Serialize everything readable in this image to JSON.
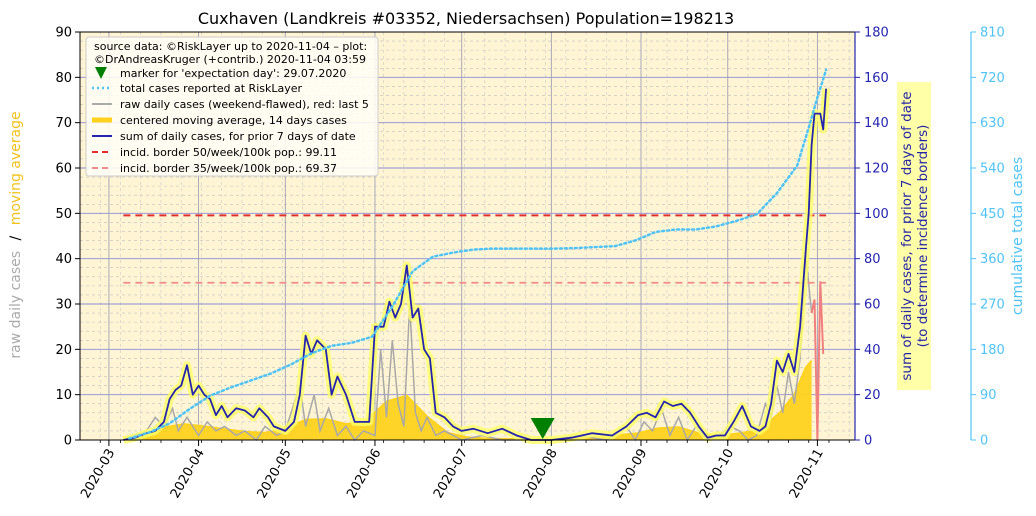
{
  "chart_data": {
    "type": "line",
    "title": "Cuxhaven (Landkreis #03352, Niedersachsen) Population=198213",
    "ylabel_left_part1": "raw daily cases",
    "ylabel_left_sep": "/",
    "ylabel_left_part2": "moving average",
    "ylabel_right1_line1": "sum of daily cases, for prior 7 days of date",
    "ylabel_right1_line2": "(to determine incidence borders)",
    "ylabel_right2": "cumulative total cases",
    "ylim_left": [
      0,
      90
    ],
    "ylim_right1": [
      0,
      180
    ],
    "ylim_right2": [
      0,
      810
    ],
    "xlim": [
      "2020-02-20",
      "2020-11-14"
    ],
    "yticks_left": [
      0,
      10,
      20,
      30,
      40,
      50,
      60,
      70,
      80,
      90
    ],
    "yticks_right1": [
      0,
      20,
      40,
      60,
      80,
      100,
      120,
      140,
      160,
      180
    ],
    "yticks_right2": [
      0,
      90,
      180,
      270,
      360,
      450,
      540,
      630,
      720,
      810
    ],
    "xticks": [
      {
        "date": "2020-03-01",
        "label": "2020-03"
      },
      {
        "date": "2020-04-01",
        "label": "2020-04"
      },
      {
        "date": "2020-05-01",
        "label": "2020-05"
      },
      {
        "date": "2020-06-01",
        "label": "2020-06"
      },
      {
        "date": "2020-07-01",
        "label": "2020-07"
      },
      {
        "date": "2020-08-01",
        "label": "2020-08"
      },
      {
        "date": "2020-09-01",
        "label": "2020-09"
      },
      {
        "date": "2020-10-01",
        "label": "2020-10"
      },
      {
        "date": "2020-11-01",
        "label": "2020-11"
      }
    ],
    "grid": true,
    "legend_position": "top-left",
    "legend": {
      "source_line1": "source data: ©RiskLayer up to 2020-11-04 – plot:",
      "source_line2": "©DrAndreasKruger (+contrib.) 2020-11-04 03:59",
      "entries": [
        "marker for 'expectation day': 29.07.2020",
        "total cases reported at RiskLayer",
        "raw daily cases (weekend-flawed), red: last 5",
        "centered moving average, 14 days cases",
        "sum of daily cases, for prior 7 days of date",
        "incid. border 50/week/100k pop.: 99.11",
        "incid. border 35/week/100k pop.: 69.37"
      ]
    },
    "expectation_day": "2020-07-29",
    "incidence_border_50": 99.11,
    "incidence_border_35": 69.37,
    "series": [
      {
        "name": "total cases reported at RiskLayer",
        "axis": "right2",
        "points": [
          [
            "2020-03-08",
            3
          ],
          [
            "2020-03-15",
            15
          ],
          [
            "2020-03-22",
            33
          ],
          [
            "2020-03-29",
            62
          ],
          [
            "2020-04-05",
            88
          ],
          [
            "2020-04-12",
            104
          ],
          [
            "2020-04-19",
            118
          ],
          [
            "2020-04-26",
            132
          ],
          [
            "2020-05-03",
            150
          ],
          [
            "2020-05-10",
            172
          ],
          [
            "2020-05-17",
            187
          ],
          [
            "2020-05-24",
            193
          ],
          [
            "2020-05-31",
            205
          ],
          [
            "2020-06-07",
            265
          ],
          [
            "2020-06-14",
            335
          ],
          [
            "2020-06-21",
            364
          ],
          [
            "2020-06-28",
            372
          ],
          [
            "2020-07-05",
            378
          ],
          [
            "2020-07-12",
            380
          ],
          [
            "2020-07-19",
            380
          ],
          [
            "2020-07-26",
            380
          ],
          [
            "2020-08-02",
            380
          ],
          [
            "2020-08-09",
            381
          ],
          [
            "2020-08-16",
            383
          ],
          [
            "2020-08-23",
            385
          ],
          [
            "2020-08-30",
            396
          ],
          [
            "2020-09-06",
            413
          ],
          [
            "2020-09-13",
            418
          ],
          [
            "2020-09-20",
            418
          ],
          [
            "2020-09-27",
            424
          ],
          [
            "2020-10-04",
            435
          ],
          [
            "2020-10-11",
            448
          ],
          [
            "2020-10-18",
            490
          ],
          [
            "2020-10-25",
            545
          ],
          [
            "2020-10-29",
            620
          ],
          [
            "2020-11-01",
            680
          ],
          [
            "2020-11-04",
            735
          ]
        ]
      },
      {
        "name": "raw daily cases (weekend-flawed), red: last 5",
        "axis": "left",
        "points": [
          [
            "2020-03-06",
            0
          ],
          [
            "2020-03-10",
            1
          ],
          [
            "2020-03-14",
            2
          ],
          [
            "2020-03-17",
            5
          ],
          [
            "2020-03-20",
            3
          ],
          [
            "2020-03-23",
            7
          ],
          [
            "2020-03-25",
            2
          ],
          [
            "2020-03-28",
            5
          ],
          [
            "2020-04-01",
            1
          ],
          [
            "2020-04-04",
            4
          ],
          [
            "2020-04-07",
            2
          ],
          [
            "2020-04-10",
            3
          ],
          [
            "2020-04-14",
            1
          ],
          [
            "2020-04-17",
            2
          ],
          [
            "2020-04-21",
            0
          ],
          [
            "2020-04-24",
            3
          ],
          [
            "2020-04-28",
            1
          ],
          [
            "2020-05-01",
            2
          ],
          [
            "2020-05-04",
            8
          ],
          [
            "2020-05-06",
            12
          ],
          [
            "2020-05-08",
            3
          ],
          [
            "2020-05-11",
            10
          ],
          [
            "2020-05-13",
            2
          ],
          [
            "2020-05-16",
            7
          ],
          [
            "2020-05-19",
            1
          ],
          [
            "2020-05-22",
            3
          ],
          [
            "2020-05-25",
            0
          ],
          [
            "2020-05-28",
            2
          ],
          [
            "2020-06-01",
            1
          ],
          [
            "2020-06-03",
            20
          ],
          [
            "2020-06-05",
            5
          ],
          [
            "2020-06-07",
            22
          ],
          [
            "2020-06-09",
            8
          ],
          [
            "2020-06-11",
            3
          ],
          [
            "2020-06-13",
            30
          ],
          [
            "2020-06-15",
            6
          ],
          [
            "2020-06-17",
            2
          ],
          [
            "2020-06-19",
            5
          ],
          [
            "2020-06-22",
            1
          ],
          [
            "2020-06-25",
            2
          ],
          [
            "2020-07-01",
            0
          ],
          [
            "2020-07-08",
            1
          ],
          [
            "2020-07-15",
            0
          ],
          [
            "2020-07-22",
            0
          ],
          [
            "2020-08-01",
            0
          ],
          [
            "2020-08-10",
            1
          ],
          [
            "2020-08-20",
            0
          ],
          [
            "2020-08-27",
            3
          ],
          [
            "2020-08-30",
            0
          ],
          [
            "2020-09-02",
            4
          ],
          [
            "2020-09-05",
            2
          ],
          [
            "2020-09-08",
            7
          ],
          [
            "2020-09-11",
            1
          ],
          [
            "2020-09-14",
            5
          ],
          [
            "2020-09-17",
            0
          ],
          [
            "2020-09-20",
            3
          ],
          [
            "2020-09-24",
            0
          ],
          [
            "2020-09-28",
            1
          ],
          [
            "2020-10-02",
            3
          ],
          [
            "2020-10-05",
            2
          ],
          [
            "2020-10-08",
            0
          ],
          [
            "2020-10-11",
            1
          ],
          [
            "2020-10-14",
            8
          ],
          [
            "2020-10-16",
            5
          ],
          [
            "2020-10-18",
            12
          ],
          [
            "2020-10-20",
            6
          ],
          [
            "2020-10-22",
            15
          ],
          [
            "2020-10-24",
            8
          ],
          [
            "2020-10-26",
            18
          ],
          [
            "2020-10-28",
            41
          ],
          [
            "2020-10-30",
            28
          ]
        ]
      },
      {
        "name": "raw daily cases, last 5 (red)",
        "axis": "left",
        "points": [
          [
            "2020-10-30",
            28
          ],
          [
            "2020-10-31",
            31
          ],
          [
            "2020-11-01",
            0
          ],
          [
            "2020-11-02",
            35
          ],
          [
            "2020-11-03",
            19
          ]
        ]
      },
      {
        "name": "centered moving average, 14 days cases",
        "axis": "left",
        "points": [
          [
            "2020-03-06",
            0.3
          ],
          [
            "2020-03-13",
            1.2
          ],
          [
            "2020-03-20",
            2.8
          ],
          [
            "2020-03-27",
            3.5
          ],
          [
            "2020-04-03",
            3.0
          ],
          [
            "2020-04-10",
            2.4
          ],
          [
            "2020-04-17",
            1.8
          ],
          [
            "2020-04-24",
            1.6
          ],
          [
            "2020-05-01",
            2.4
          ],
          [
            "2020-05-08",
            4.5
          ],
          [
            "2020-05-15",
            4.6
          ],
          [
            "2020-05-22",
            3.5
          ],
          [
            "2020-05-29",
            4.2
          ],
          [
            "2020-06-05",
            8.5
          ],
          [
            "2020-06-12",
            9.8
          ],
          [
            "2020-06-19",
            5.2
          ],
          [
            "2020-06-26",
            1.6
          ],
          [
            "2020-07-03",
            0.6
          ],
          [
            "2020-07-10",
            0.3
          ],
          [
            "2020-07-20",
            0.2
          ],
          [
            "2020-07-31",
            0.2
          ],
          [
            "2020-08-10",
            0.4
          ],
          [
            "2020-08-20",
            0.8
          ],
          [
            "2020-08-31",
            1.5
          ],
          [
            "2020-09-07",
            2.6
          ],
          [
            "2020-09-14",
            2.8
          ],
          [
            "2020-09-21",
            1.5
          ],
          [
            "2020-09-28",
            0.9
          ],
          [
            "2020-10-05",
            1.5
          ],
          [
            "2020-10-12",
            2.2
          ],
          [
            "2020-10-19",
            6.0
          ],
          [
            "2020-10-24",
            10.0
          ],
          [
            "2020-10-28",
            16.0
          ],
          [
            "2020-10-30",
            17.5
          ]
        ]
      },
      {
        "name": "sum of daily cases, for prior 7 days of date",
        "axis": "right1",
        "points": [
          [
            "2020-03-06",
            0
          ],
          [
            "2020-03-10",
            1
          ],
          [
            "2020-03-14",
            3
          ],
          [
            "2020-03-17",
            4
          ],
          [
            "2020-03-20",
            8
          ],
          [
            "2020-03-22",
            18
          ],
          [
            "2020-03-24",
            22
          ],
          [
            "2020-03-26",
            24
          ],
          [
            "2020-03-28",
            33
          ],
          [
            "2020-03-30",
            20
          ],
          [
            "2020-04-01",
            24
          ],
          [
            "2020-04-03",
            20
          ],
          [
            "2020-04-05",
            18
          ],
          [
            "2020-04-07",
            11
          ],
          [
            "2020-04-09",
            15
          ],
          [
            "2020-04-11",
            10
          ],
          [
            "2020-04-14",
            14
          ],
          [
            "2020-04-17",
            13
          ],
          [
            "2020-04-20",
            10
          ],
          [
            "2020-04-22",
            14
          ],
          [
            "2020-04-25",
            10
          ],
          [
            "2020-04-27",
            6
          ],
          [
            "2020-05-01",
            4
          ],
          [
            "2020-05-04",
            8
          ],
          [
            "2020-05-06",
            20
          ],
          [
            "2020-05-08",
            46
          ],
          [
            "2020-05-10",
            38
          ],
          [
            "2020-05-12",
            44
          ],
          [
            "2020-05-15",
            40
          ],
          [
            "2020-05-17",
            20
          ],
          [
            "2020-05-19",
            28
          ],
          [
            "2020-05-22",
            20
          ],
          [
            "2020-05-25",
            8
          ],
          [
            "2020-05-28",
            8
          ],
          [
            "2020-05-30",
            8
          ],
          [
            "2020-06-01",
            50
          ],
          [
            "2020-06-04",
            50
          ],
          [
            "2020-06-06",
            61
          ],
          [
            "2020-06-08",
            54
          ],
          [
            "2020-06-10",
            60
          ],
          [
            "2020-06-12",
            77
          ],
          [
            "2020-06-14",
            54
          ],
          [
            "2020-06-16",
            58
          ],
          [
            "2020-06-18",
            40
          ],
          [
            "2020-06-20",
            36
          ],
          [
            "2020-06-22",
            12
          ],
          [
            "2020-06-25",
            10
          ],
          [
            "2020-06-28",
            6
          ],
          [
            "2020-07-01",
            4
          ],
          [
            "2020-07-05",
            5
          ],
          [
            "2020-07-10",
            3
          ],
          [
            "2020-07-15",
            5
          ],
          [
            "2020-07-20",
            2
          ],
          [
            "2020-07-25",
            0
          ],
          [
            "2020-08-01",
            0
          ],
          [
            "2020-08-08",
            1
          ],
          [
            "2020-08-15",
            3
          ],
          [
            "2020-08-22",
            2
          ],
          [
            "2020-08-27",
            6
          ],
          [
            "2020-08-31",
            11
          ],
          [
            "2020-09-03",
            12
          ],
          [
            "2020-09-06",
            10
          ],
          [
            "2020-09-09",
            17
          ],
          [
            "2020-09-12",
            15
          ],
          [
            "2020-09-15",
            16
          ],
          [
            "2020-09-18",
            12
          ],
          [
            "2020-09-21",
            6
          ],
          [
            "2020-09-24",
            1
          ],
          [
            "2020-09-27",
            2
          ],
          [
            "2020-09-30",
            2
          ],
          [
            "2020-10-03",
            8
          ],
          [
            "2020-10-06",
            15
          ],
          [
            "2020-10-09",
            6
          ],
          [
            "2020-10-12",
            4
          ],
          [
            "2020-10-14",
            6
          ],
          [
            "2020-10-16",
            16
          ],
          [
            "2020-10-18",
            35
          ],
          [
            "2020-10-20",
            30
          ],
          [
            "2020-10-22",
            38
          ],
          [
            "2020-10-24",
            30
          ],
          [
            "2020-10-26",
            50
          ],
          [
            "2020-10-28",
            84
          ],
          [
            "2020-10-29",
            100
          ],
          [
            "2020-10-30",
            130
          ],
          [
            "2020-10-31",
            144
          ],
          [
            "2020-11-02",
            144
          ],
          [
            "2020-11-03",
            137
          ],
          [
            "2020-11-04",
            155
          ]
        ]
      }
    ]
  }
}
